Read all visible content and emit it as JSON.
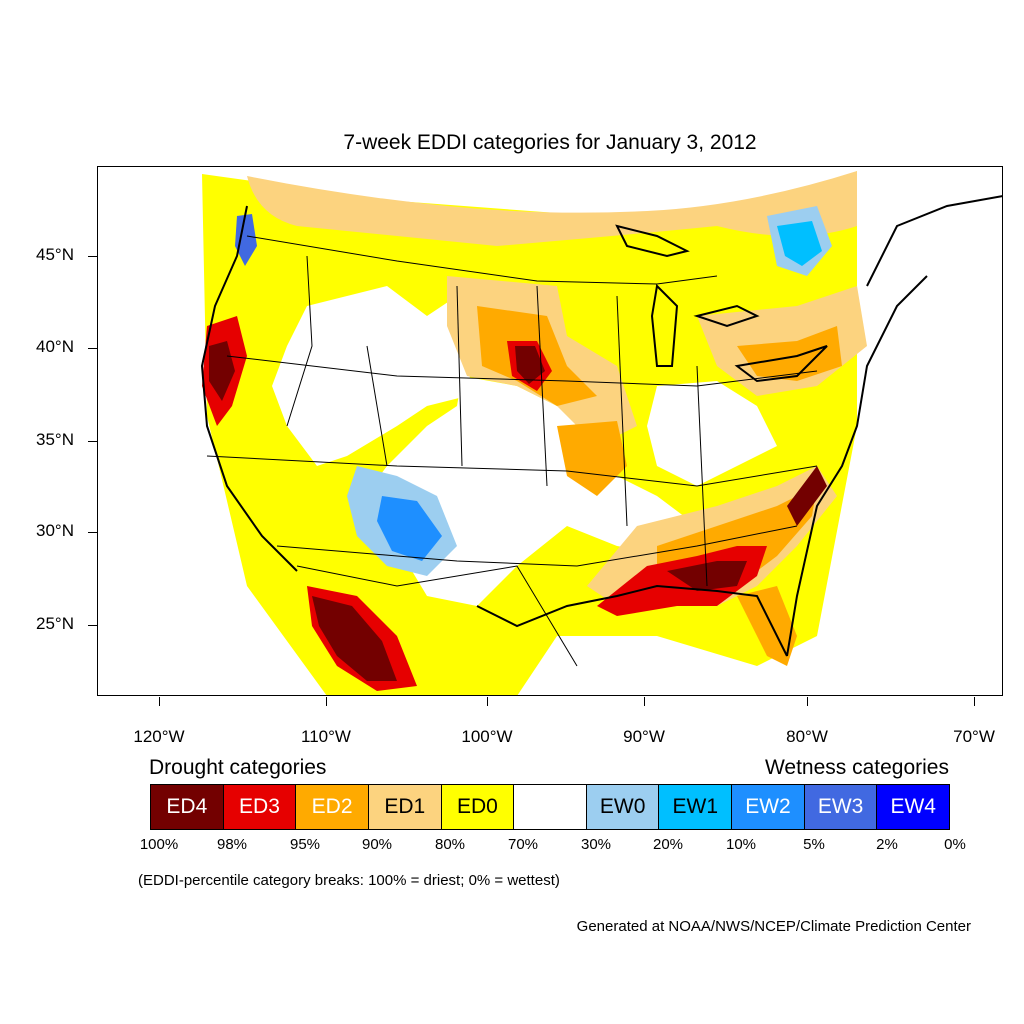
{
  "title": "7-week EDDI categories for January 3, 2012",
  "latitude_labels": [
    "45°N",
    "40°N",
    "35°N",
    "30°N",
    "25°N"
  ],
  "longitude_labels": [
    "120°W",
    "110°W",
    "100°W",
    "90°W",
    "80°W",
    "70°W"
  ],
  "legend": {
    "drought_heading": "Drought categories",
    "wetness_heading": "Wetness categories",
    "categories": [
      {
        "label": "ED4",
        "color": "#730000",
        "text_color": "#ffffff"
      },
      {
        "label": "ED3",
        "color": "#e60000",
        "text_color": "#ffffff"
      },
      {
        "label": "ED2",
        "color": "#ffaa00",
        "text_color": "#ffffff"
      },
      {
        "label": "ED1",
        "color": "#fcd37f",
        "text_color": "#000000"
      },
      {
        "label": "ED0",
        "color": "#ffff00",
        "text_color": "#000000"
      },
      {
        "label": "",
        "color": "#ffffff",
        "text_color": "#000000"
      },
      {
        "label": "EW0",
        "color": "#9ccef0",
        "text_color": "#000000"
      },
      {
        "label": "EW1",
        "color": "#00bfff",
        "text_color": "#000000"
      },
      {
        "label": "EW2",
        "color": "#1e8fff",
        "text_color": "#ffffff"
      },
      {
        "label": "EW3",
        "color": "#4169e1",
        "text_color": "#ffffff"
      },
      {
        "label": "EW4",
        "color": "#0000ff",
        "text_color": "#ffffff"
      }
    ],
    "percentiles": [
      "100%",
      "98%",
      "95%",
      "90%",
      "80%",
      "70%",
      "30%",
      "20%",
      "10%",
      "5%",
      "2%",
      "0%"
    ]
  },
  "note": "(EDDI-percentile category breaks: 100% = driest; 0% = wettest)",
  "credit": "Generated at NOAA/NWS/NCEP/Climate Prediction Center"
}
